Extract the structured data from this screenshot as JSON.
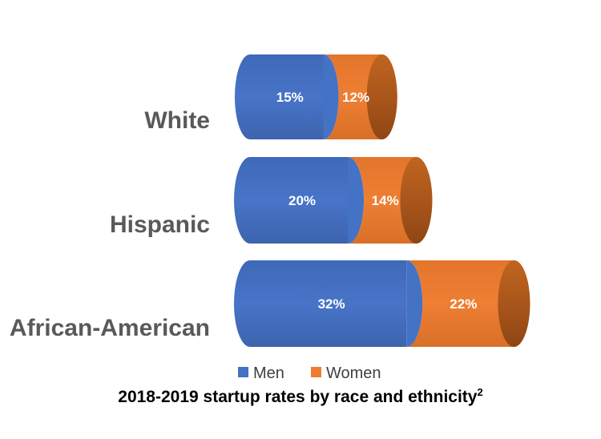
{
  "chart_data": {
    "type": "bar",
    "orientation": "horizontal",
    "stacked": true,
    "shape": "cylinder",
    "categories": [
      "White",
      "Hispanic",
      "African-American"
    ],
    "series": [
      {
        "name": "Men",
        "values": [
          15,
          20,
          32
        ],
        "labels": [
          "15%",
          "20%",
          "32%"
        ],
        "color": "#4472C4"
      },
      {
        "name": "Women",
        "values": [
          12,
          14,
          22
        ],
        "labels": [
          "12%",
          "14%",
          "22%"
        ],
        "color": "#ED7D31"
      }
    ],
    "legend_position": "bottom",
    "grid": false,
    "title": "2018-2019 startup rates by race and ethnicity",
    "title_footnote": "2"
  },
  "colors": {
    "category_label": "#595959",
    "women_cap": "#B55A1E",
    "women_cap_dark": "#8C4514"
  }
}
